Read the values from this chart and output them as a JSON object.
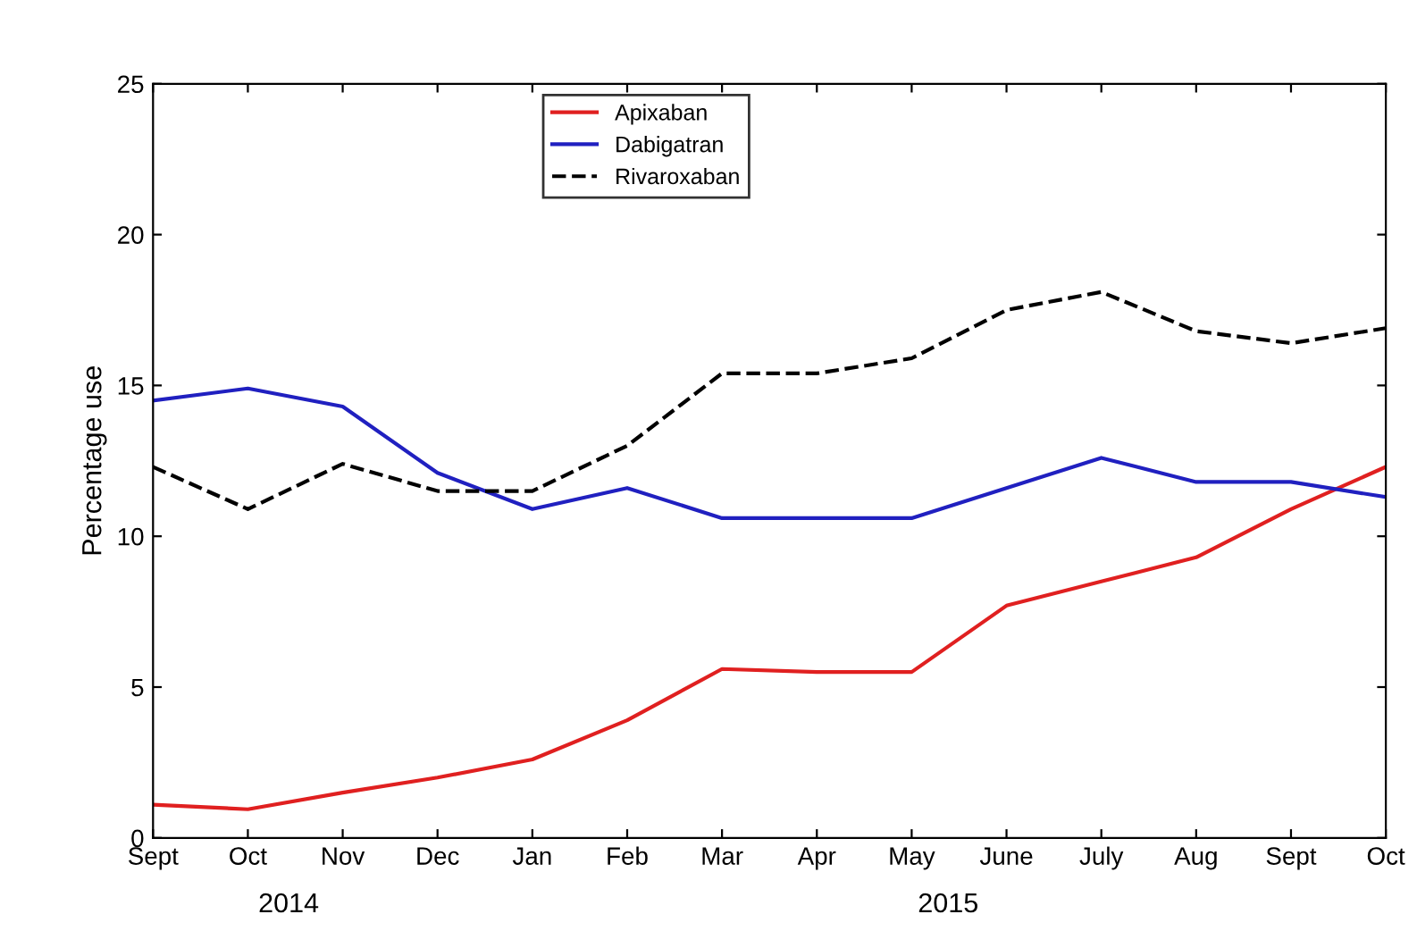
{
  "chart_data": {
    "type": "line",
    "ylabel": "Percentage use",
    "categories": [
      "Sept",
      "Oct",
      "Nov",
      "Dec",
      "Jan",
      "Feb",
      "Mar",
      "Apr",
      "May",
      "June",
      "July",
      "Aug",
      "Sept",
      "Oct"
    ],
    "series": [
      {
        "name": "Apixaban",
        "color": "#e02020",
        "values": [
          1.1,
          0.95,
          1.5,
          2.0,
          2.6,
          3.9,
          5.6,
          5.5,
          5.5,
          7.7,
          8.5,
          9.3,
          10.9,
          12.3
        ]
      },
      {
        "name": "Dabigatran",
        "color": "#2020c0",
        "values": [
          14.5,
          14.9,
          14.3,
          12.1,
          10.9,
          11.6,
          10.6,
          10.6,
          10.6,
          11.6,
          12.6,
          11.8,
          11.8,
          11.3
        ]
      },
      {
        "name": "Rivaroxaban",
        "color": "#000000",
        "line_style": "dashed",
        "values": [
          12.3,
          10.9,
          12.4,
          11.5,
          11.5,
          13.0,
          15.4,
          15.4,
          15.9,
          17.5,
          18.1,
          16.8,
          16.4,
          16.9
        ]
      }
    ],
    "ylim": [
      0,
      25
    ],
    "yticks": [
      0,
      5,
      10,
      15,
      20,
      25
    ],
    "legend": "top",
    "marker": "none",
    "grid": false,
    "annotations": [
      "2014",
      "2015"
    ]
  }
}
